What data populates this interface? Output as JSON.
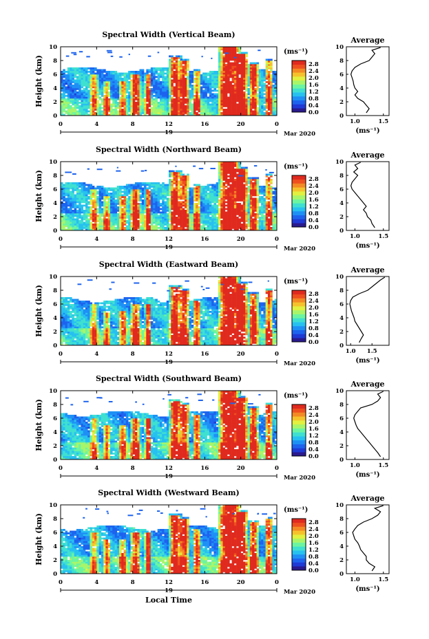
{
  "chart_data": [
    {
      "type": "heatmap",
      "title": "Spectral Width (Vertical Beam)",
      "ylabel": "Height (km)",
      "ylim": [
        0,
        10
      ],
      "yticks": [
        "0",
        "2",
        "4",
        "6",
        "8",
        "10"
      ],
      "xticks": [
        "0",
        "4",
        "8",
        "12",
        "16",
        "20",
        "0"
      ],
      "date_label": "19",
      "month_label": "Mar 2020",
      "colorbar_unit": "(ms⁻¹)",
      "colorbar_ticks": [
        "0.0",
        "0.4",
        "0.8",
        "1.2",
        "1.6",
        "2.0",
        "2.4",
        "2.8"
      ],
      "colorbar_range": [
        0,
        3.0
      ],
      "profile": {
        "title": "Average",
        "xlabel": "(ms⁻¹)",
        "xticks": [
          "1.0",
          "1.5"
        ],
        "xlim": [
          0.85,
          1.6
        ],
        "heights": [
          0.4,
          1.0,
          1.5,
          2.0,
          2.5,
          3.0,
          3.5,
          4.0,
          4.5,
          5.0,
          5.5,
          6.0,
          6.5,
          7.0,
          7.5,
          8.0,
          8.5,
          9.0,
          9.5,
          9.9
        ],
        "values": [
          1.2,
          1.25,
          1.2,
          1.15,
          1.05,
          1.0,
          1.05,
          1.0,
          0.98,
          0.97,
          0.95,
          0.93,
          0.95,
          1.0,
          1.1,
          1.25,
          1.3,
          1.35,
          1.3,
          1.45
        ]
      }
    },
    {
      "type": "heatmap",
      "title": "Spectral Width (Northward Beam)",
      "ylabel": "Height (km)",
      "ylim": [
        0,
        10
      ],
      "yticks": [
        "0",
        "2",
        "4",
        "6",
        "8",
        "10"
      ],
      "xticks": [
        "0",
        "4",
        "8",
        "12",
        "16",
        "20",
        "0"
      ],
      "date_label": "19",
      "month_label": "Mar 2020",
      "colorbar_unit": "(ms⁻¹)",
      "colorbar_ticks": [
        "0.0",
        "0.4",
        "0.8",
        "1.2",
        "1.6",
        "2.0",
        "2.4",
        "2.8"
      ],
      "colorbar_range": [
        0,
        3.0
      ],
      "profile": {
        "title": "Average",
        "xlabel": "(ms⁻¹)",
        "xticks": [
          "1.0",
          "1.5"
        ],
        "xlim": [
          0.85,
          1.6
        ],
        "heights": [
          0.4,
          1.0,
          1.5,
          2.0,
          2.5,
          3.0,
          3.5,
          4.0,
          4.5,
          5.0,
          5.5,
          6.0,
          6.5,
          7.0,
          7.5,
          8.0,
          8.5,
          9.0,
          9.5,
          9.9
        ],
        "values": [
          1.35,
          1.3,
          1.28,
          1.22,
          1.2,
          1.15,
          1.2,
          1.15,
          1.1,
          1.05,
          1.0,
          0.95,
          0.93,
          0.95,
          1.0,
          1.05,
          0.98,
          1.05,
          1.0,
          1.1
        ]
      }
    },
    {
      "type": "heatmap",
      "title": "Spectral Width (Eastward Beam)",
      "ylabel": "Height (km)",
      "ylim": [
        0,
        10
      ],
      "yticks": [
        "0",
        "2",
        "4",
        "6",
        "8",
        "10"
      ],
      "xticks": [
        "0",
        "4",
        "8",
        "12",
        "16",
        "20",
        "0"
      ],
      "date_label": "19",
      "month_label": "Mar 2020",
      "colorbar_unit": "(ms⁻¹)",
      "colorbar_ticks": [
        "0.0",
        "0.4",
        "0.8",
        "1.2",
        "1.6",
        "2.0",
        "2.4",
        "2.8"
      ],
      "colorbar_range": [
        0,
        3.0
      ],
      "profile": {
        "title": "Average",
        "xlabel": "(ms⁻¹)",
        "xticks": [
          "1.0",
          "1.5"
        ],
        "xlim": [
          0.9,
          1.9
        ],
        "heights": [
          0.4,
          1.0,
          1.5,
          2.0,
          2.5,
          3.0,
          3.5,
          4.0,
          4.5,
          5.0,
          5.5,
          6.0,
          6.5,
          7.0,
          7.5,
          8.0,
          8.5,
          9.0,
          9.5,
          9.9
        ],
        "values": [
          1.2,
          1.25,
          1.3,
          1.25,
          1.2,
          1.15,
          1.1,
          1.08,
          1.05,
          1.02,
          1.0,
          0.98,
          1.0,
          1.05,
          1.2,
          1.4,
          1.5,
          1.6,
          1.7,
          1.8
        ]
      }
    },
    {
      "type": "heatmap",
      "title": "Spectral Width (Southward Beam)",
      "ylabel": "Height (km)",
      "ylim": [
        0,
        10
      ],
      "yticks": [
        "0",
        "2",
        "4",
        "6",
        "8",
        "10"
      ],
      "xticks": [
        "0",
        "4",
        "8",
        "12",
        "16",
        "20",
        "0"
      ],
      "date_label": "19",
      "month_label": "Mar 2020",
      "colorbar_unit": "(ms⁻¹)",
      "colorbar_ticks": [
        "0.0",
        "0.4",
        "0.8",
        "1.2",
        "1.6",
        "2.0",
        "2.4",
        "2.8"
      ],
      "colorbar_range": [
        0,
        3.0
      ],
      "profile": {
        "title": "Average",
        "xlabel": "(ms⁻¹)",
        "xticks": [
          "1.0",
          "1.5"
        ],
        "xlim": [
          0.85,
          1.6
        ],
        "heights": [
          0.4,
          1.0,
          1.5,
          2.0,
          2.5,
          3.0,
          3.5,
          4.0,
          4.5,
          5.0,
          5.5,
          6.0,
          6.5,
          7.0,
          7.5,
          8.0,
          8.5,
          9.0,
          9.5,
          9.9
        ],
        "values": [
          1.45,
          1.4,
          1.35,
          1.3,
          1.25,
          1.2,
          1.15,
          1.1,
          1.05,
          1.02,
          1.0,
          0.98,
          1.0,
          1.05,
          1.1,
          1.3,
          1.4,
          1.45,
          1.4,
          1.5
        ]
      }
    },
    {
      "type": "heatmap",
      "title": "Spectral Width (Westward Beam)",
      "ylabel": "Height (km)",
      "xlabel": "Local Time",
      "ylim": [
        0,
        10
      ],
      "yticks": [
        "0",
        "2",
        "4",
        "6",
        "8",
        "10"
      ],
      "xticks": [
        "0",
        "4",
        "8",
        "12",
        "16",
        "20",
        "0"
      ],
      "date_label": "19",
      "month_label": "Mar 2020",
      "colorbar_unit": "(ms⁻¹)",
      "colorbar_ticks": [
        "0.0",
        "0.4",
        "0.8",
        "1.2",
        "1.6",
        "2.0",
        "2.4",
        "2.8"
      ],
      "colorbar_range": [
        0,
        3.0
      ],
      "profile": {
        "title": "Average",
        "xlabel": "(ms⁻¹)",
        "xticks": [
          "1.0",
          "1.5"
        ],
        "xlim": [
          0.85,
          1.6
        ],
        "heights": [
          0.4,
          1.0,
          1.5,
          2.0,
          2.5,
          3.0,
          3.5,
          4.0,
          4.5,
          5.0,
          5.5,
          6.0,
          6.5,
          7.0,
          7.5,
          8.0,
          8.5,
          9.0,
          9.5,
          9.9
        ],
        "values": [
          1.3,
          1.35,
          1.25,
          1.2,
          1.2,
          1.15,
          1.1,
          1.08,
          1.05,
          1.0,
          0.98,
          0.96,
          1.0,
          1.05,
          1.15,
          1.3,
          1.4,
          1.45,
          1.35,
          1.5
        ]
      }
    }
  ],
  "colormap": [
    "#2a1a8f",
    "#1f3ad6",
    "#1d63ee",
    "#1e90f5",
    "#27c1f0",
    "#3fe0d0",
    "#6cf5a0",
    "#a8f56a",
    "#e2f03f",
    "#f6c22c",
    "#f48a24",
    "#ef4f1e",
    "#e02a1f"
  ]
}
